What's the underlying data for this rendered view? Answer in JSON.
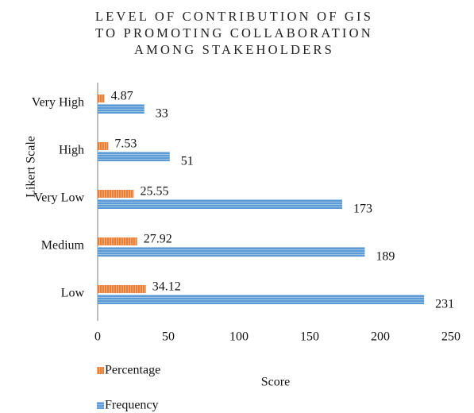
{
  "chart_data": {
    "type": "bar",
    "orientation": "horizontal",
    "title": "LEVEL OF CONTRIBUTION OF GIS TO PROMOTING COLLABORATION AMONG STAKEHOLDERS",
    "x_label": "Score",
    "y_label": "Likert Scale",
    "categories": [
      "Very High",
      "High",
      "Very Low",
      "Medium",
      "Low"
    ],
    "series": [
      {
        "name": "Percentage",
        "color": "#ed7d31",
        "values": [
          4.87,
          7.53,
          25.55,
          27.92,
          34.12
        ]
      },
      {
        "name": "Frequency",
        "color": "#5b9bd5",
        "values": [
          33,
          51,
          173,
          189,
          231
        ]
      }
    ],
    "xlim": [
      0,
      250
    ],
    "xticks": [
      0,
      50,
      100,
      150,
      200,
      250
    ],
    "grid": false,
    "legend": "bottom-left"
  }
}
